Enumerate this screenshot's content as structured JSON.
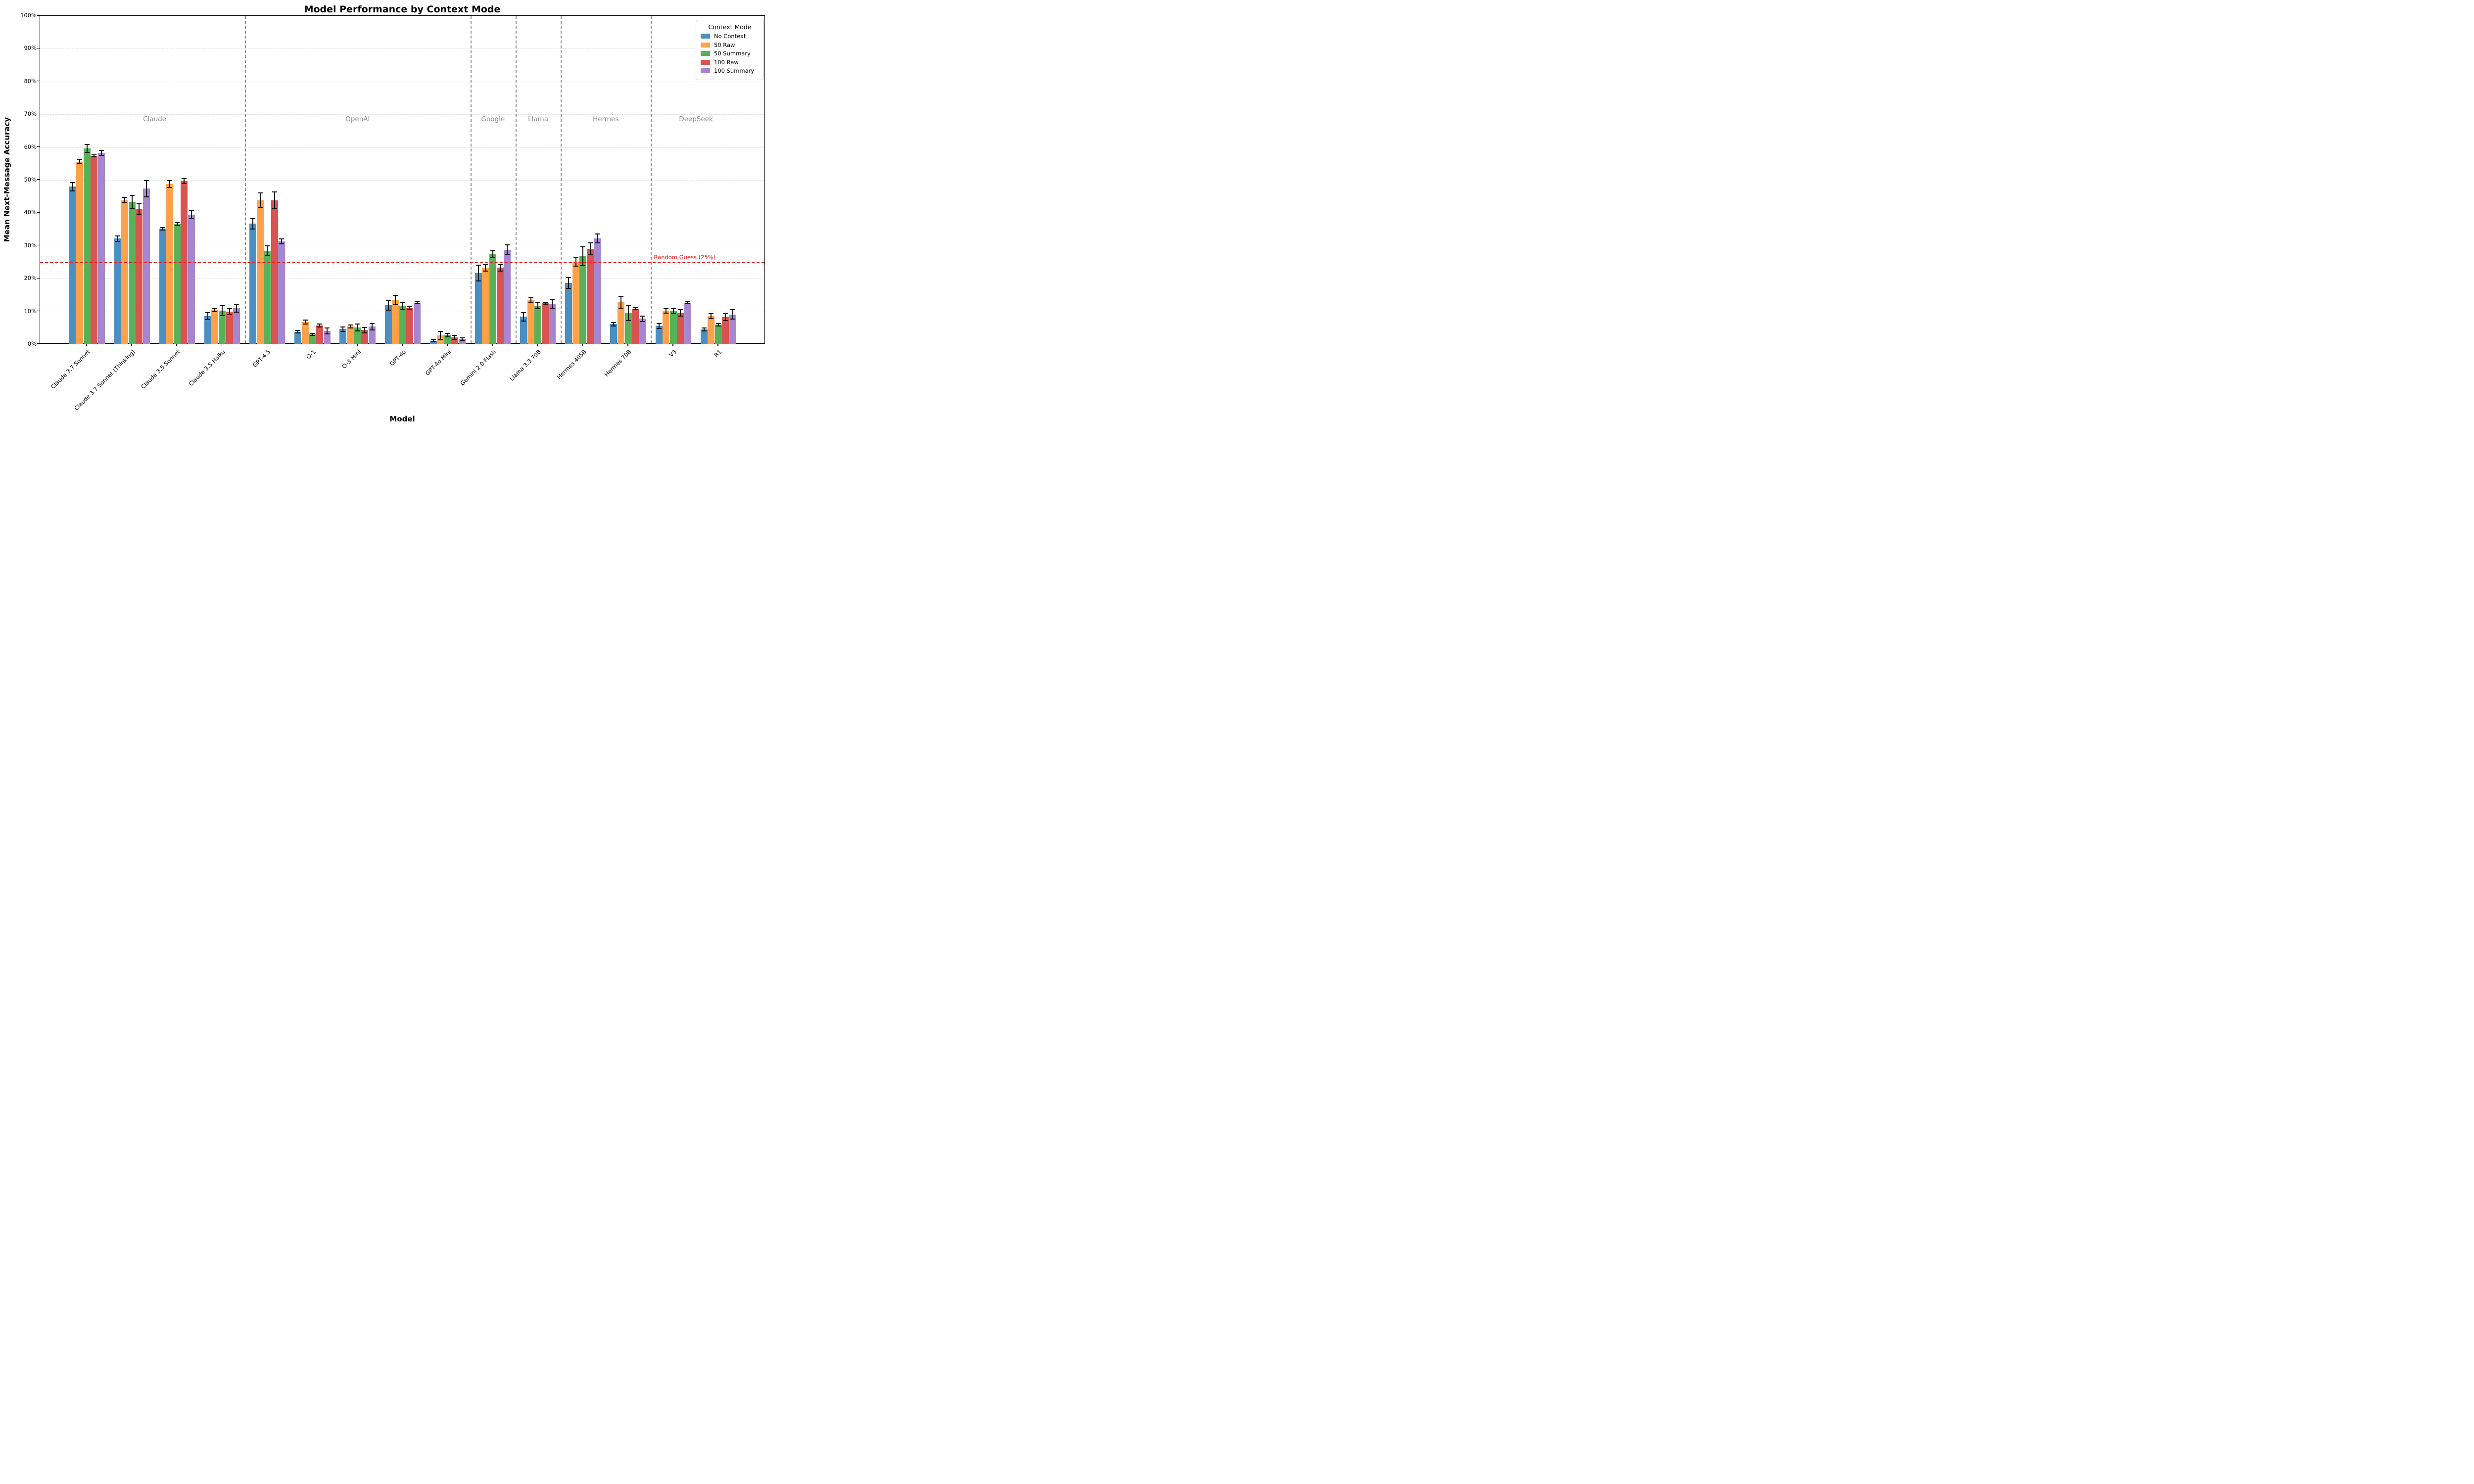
{
  "chart_data": {
    "type": "bar",
    "title": "Model Performance by Context Mode",
    "xlabel": "Model",
    "ylabel": "Mean Next-Message Accuracy",
    "ylim": [
      0,
      100
    ],
    "yticks": [
      0,
      10,
      20,
      30,
      40,
      50,
      60,
      70,
      80,
      90,
      100
    ],
    "ytick_suffix": "%",
    "grid": "horizontal-dashed",
    "legend_position": "top-right",
    "legend_title": "Context Mode",
    "categories": [
      "Claude 3.7 Sonnet",
      "Claude 3.7 Sonnet (Thinking)",
      "Claude 3.5 Sonnet",
      "Claude 3.5 Haiku",
      "GPT-4.5",
      "O-1",
      "O-3 Mini",
      "GPT-4o",
      "GPT-4o Mini",
      "Gemini 2.0 Flash",
      "Llama 3.3 70B",
      "Hermes 405B",
      "Hermes 70B",
      "V3",
      "R1"
    ],
    "sections": [
      {
        "label": "Claude",
        "start": 0,
        "end": 3
      },
      {
        "label": "OpenAI",
        "start": 4,
        "end": 8
      },
      {
        "label": "Google",
        "start": 9,
        "end": 9
      },
      {
        "label": "Llama",
        "start": 10,
        "end": 10
      },
      {
        "label": "Hermes",
        "start": 11,
        "end": 12
      },
      {
        "label": "DeepSeek",
        "start": 13,
        "end": 14
      }
    ],
    "section_label_y_pct": 68.5,
    "separators_after_index": [
      3,
      8,
      9,
      10,
      12
    ],
    "series": [
      {
        "name": "No Context",
        "color": "#4a8fc2",
        "values": [
          48.0,
          32.2,
          35.2,
          8.6,
          36.7,
          3.8,
          4.6,
          11.9,
          1.1,
          21.7,
          8.4,
          18.7,
          6.1,
          5.6,
          4.5
        ],
        "errors": [
          1.3,
          0.8,
          0.4,
          1.0,
          1.6,
          0.4,
          0.7,
          1.5,
          0.4,
          2.4,
          1.3,
          1.7,
          0.6,
          0.8,
          0.4
        ]
      },
      {
        "name": "50 Raw",
        "color": "#ffa14a",
        "values": [
          55.6,
          43.9,
          48.8,
          10.4,
          43.8,
          6.8,
          5.4,
          13.5,
          2.7,
          23.3,
          13.4,
          25.1,
          12.8,
          10.2,
          8.6
        ],
        "errors": [
          0.6,
          0.9,
          1.0,
          0.5,
          2.3,
          0.6,
          0.4,
          1.4,
          1.2,
          1.0,
          0.8,
          1.3,
          1.8,
          0.7,
          0.7
        ]
      },
      {
        "name": "50 Summary",
        "color": "#57b257",
        "values": [
          59.6,
          43.3,
          36.6,
          10.3,
          28.4,
          3.0,
          5.1,
          11.6,
          2.8,
          27.4,
          11.8,
          26.8,
          9.6,
          10.2,
          6.0
        ],
        "errors": [
          1.2,
          2.1,
          0.5,
          1.5,
          1.5,
          0.3,
          1.0,
          1.1,
          0.5,
          1.0,
          1.0,
          2.8,
          2.3,
          0.7,
          0.4
        ]
      },
      {
        "name": "100 Raw",
        "color": "#d95450",
        "values": [
          57.4,
          41.2,
          49.7,
          9.9,
          43.9,
          5.7,
          4.3,
          11.1,
          2.1,
          23.3,
          12.5,
          29.0,
          10.8,
          9.6,
          8.3
        ],
        "errors": [
          0.3,
          1.6,
          0.7,
          0.9,
          2.5,
          0.5,
          0.8,
          0.4,
          0.6,
          1.0,
          0.3,
          1.8,
          0.3,
          1.0,
          1.1
        ]
      },
      {
        "name": "100 Summary",
        "color": "#a687cf",
        "values": [
          58.3,
          47.4,
          39.5,
          11.0,
          31.3,
          4.0,
          5.4,
          12.7,
          1.6,
          28.8,
          12.3,
          32.2,
          7.8,
          12.7,
          9.1
        ],
        "errors": [
          0.8,
          2.5,
          1.3,
          1.2,
          0.8,
          0.9,
          1.0,
          0.4,
          0.4,
          1.5,
          1.3,
          1.4,
          0.8,
          0.3,
          1.4
        ]
      }
    ],
    "reference_line": {
      "value": 25,
      "label": "Random Guess (25%)",
      "color": "#e32222",
      "style": "dashed"
    }
  }
}
